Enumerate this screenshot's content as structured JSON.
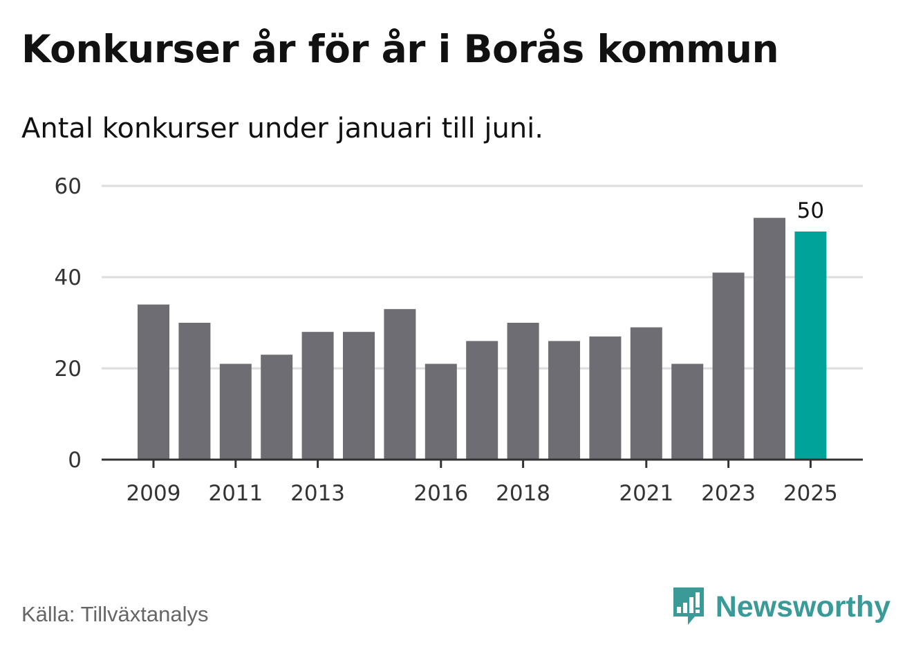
{
  "header": {
    "title": "Konkurser år för år i Borås kommun",
    "subtitle": "Antal konkurser under januari till juni."
  },
  "footer": {
    "source": "Källa: Tillväxtanalys",
    "brand": "Newsworthy",
    "brand_icon": "bar-chart-speech-bubble-icon"
  },
  "colors": {
    "bar": "#6e6d73",
    "highlight": "#00a39a",
    "grid": "#dddddd",
    "axis": "#333333",
    "brand": "#3a9a98"
  },
  "chart_data": {
    "type": "bar",
    "title": "Konkurser år för år i Borås kommun",
    "subtitle": "Antal konkurser under januari till juni.",
    "xlabel": "",
    "ylabel": "",
    "categories": [
      "2009",
      "2010",
      "2011",
      "2012",
      "2013",
      "2014",
      "2015",
      "2016",
      "2017",
      "2018",
      "2019",
      "2020",
      "2021",
      "2022",
      "2023",
      "2024",
      "2025"
    ],
    "values": [
      34,
      30,
      21,
      23,
      28,
      28,
      33,
      21,
      26,
      30,
      26,
      27,
      29,
      21,
      41,
      53,
      50
    ],
    "x_tick_labels": [
      "2009",
      "2011",
      "2013",
      "2016",
      "2018",
      "2021",
      "2023",
      "2025"
    ],
    "y_ticks": [
      0,
      20,
      40,
      60
    ],
    "ylim": [
      0,
      60
    ],
    "grid": true,
    "highlight_category": "2025",
    "annotations": [
      {
        "category": "2025",
        "text": "50"
      }
    ]
  }
}
